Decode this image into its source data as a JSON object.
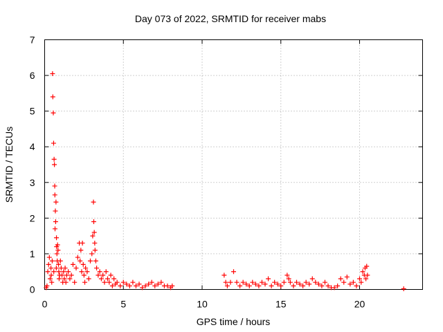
{
  "chart_data": {
    "type": "scatter",
    "title": "Day 073 of 2022, SRMTID for receiver mabs",
    "xlabel": "GPS time / hours",
    "ylabel": "SRMTID / TECUs",
    "xlim": [
      0,
      24
    ],
    "ylim": [
      0,
      7
    ],
    "x_ticks": [
      0,
      5,
      10,
      15,
      20
    ],
    "y_ticks": [
      0,
      1,
      2,
      3,
      4,
      5,
      6,
      7
    ],
    "grid": true,
    "legend": "none",
    "marker": "plus",
    "color": "#ff0000",
    "series": [
      {
        "x": [
          0.1,
          0.15,
          0.2,
          0.25,
          0.3,
          0.35,
          0.4,
          0.42,
          0.45,
          0.48,
          0.5,
          0.52,
          0.55,
          0.57,
          0.58,
          0.6,
          0.62,
          0.64,
          0.65,
          0.66,
          0.68,
          0.7,
          0.72,
          0.74,
          0.75,
          0.76,
          0.78,
          0.8,
          0.82,
          0.85,
          0.88,
          0.9,
          0.92,
          0.95,
          1.0,
          1.05,
          1.1,
          1.15,
          1.2,
          1.25,
          1.3,
          1.35,
          1.4,
          1.5,
          1.6,
          1.7,
          1.8,
          1.9,
          2.0,
          2.1,
          2.2,
          2.25,
          2.3,
          2.35,
          2.4,
          2.45,
          2.5,
          2.55,
          2.6,
          2.7,
          2.8,
          2.9,
          3.0,
          3.05,
          3.1,
          3.12,
          3.15,
          3.18,
          3.2,
          3.25,
          3.3,
          3.4,
          3.5,
          3.6,
          3.7,
          3.8,
          3.9,
          4.0,
          4.1,
          4.2,
          4.3,
          4.4,
          4.5,
          4.6,
          4.8,
          5.0,
          5.2,
          5.4,
          5.6,
          5.8,
          6.0,
          6.2,
          6.4,
          6.6,
          6.8,
          7.0,
          7.2,
          7.4,
          7.6,
          7.8,
          8.0,
          8.1,
          11.4,
          11.5,
          11.6,
          11.8,
          12.0,
          12.2,
          12.4,
          12.6,
          12.8,
          13.0,
          13.2,
          13.4,
          13.6,
          13.8,
          14.0,
          14.2,
          14.4,
          14.6,
          14.8,
          15.0,
          15.2,
          15.4,
          15.5,
          15.6,
          15.8,
          16.0,
          16.2,
          16.4,
          16.6,
          16.8,
          17.0,
          17.2,
          17.4,
          17.6,
          17.8,
          18.0,
          18.2,
          18.4,
          18.6,
          18.8,
          19.0,
          19.2,
          19.4,
          19.6,
          19.8,
          20.0,
          20.1,
          20.2,
          20.3,
          20.35,
          20.4,
          20.45,
          20.5,
          22.8
        ],
        "y": [
          0.05,
          0.1,
          0.5,
          0.7,
          0.9,
          0.3,
          0.6,
          0.4,
          0.2,
          0.8,
          6.05,
          5.4,
          4.95,
          4.1,
          0.5,
          3.65,
          3.5,
          2.9,
          2.65,
          1.7,
          2.2,
          1.9,
          2.45,
          0.6,
          1.45,
          1.2,
          1.0,
          0.8,
          1.25,
          1.1,
          0.7,
          0.5,
          0.3,
          0.4,
          0.8,
          0.6,
          0.4,
          0.2,
          0.5,
          0.3,
          0.6,
          0.2,
          0.4,
          0.5,
          0.3,
          0.4,
          0.7,
          0.2,
          0.6,
          0.9,
          1.3,
          0.8,
          1.1,
          0.5,
          1.3,
          0.7,
          0.4,
          0.2,
          0.6,
          0.5,
          0.3,
          0.8,
          1.0,
          1.5,
          2.45,
          1.9,
          1.6,
          1.3,
          1.1,
          0.8,
          0.6,
          0.4,
          0.5,
          0.3,
          0.4,
          0.2,
          0.5,
          0.3,
          0.2,
          0.4,
          0.1,
          0.3,
          0.15,
          0.2,
          0.1,
          0.2,
          0.15,
          0.1,
          0.2,
          0.1,
          0.15,
          0.05,
          0.1,
          0.15,
          0.2,
          0.1,
          0.15,
          0.2,
          0.1,
          0.1,
          0.05,
          0.1,
          0.4,
          0.2,
          0.1,
          0.2,
          0.5,
          0.2,
          0.1,
          0.2,
          0.15,
          0.1,
          0.2,
          0.15,
          0.1,
          0.2,
          0.15,
          0.3,
          0.1,
          0.2,
          0.15,
          0.1,
          0.2,
          0.4,
          0.3,
          0.2,
          0.1,
          0.2,
          0.15,
          0.1,
          0.2,
          0.15,
          0.3,
          0.2,
          0.15,
          0.1,
          0.2,
          0.1,
          0.05,
          0.05,
          0.1,
          0.3,
          0.2,
          0.35,
          0.15,
          0.2,
          0.1,
          0.3,
          0.2,
          0.5,
          0.4,
          0.6,
          0.3,
          0.65,
          0.4,
          0.02
        ]
      }
    ]
  }
}
